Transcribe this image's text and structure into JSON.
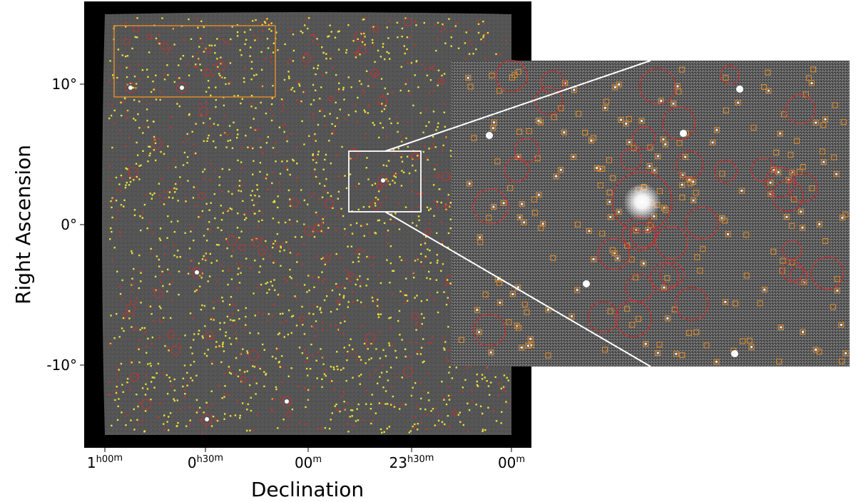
{
  "axes": {
    "xlabel": "Declination",
    "ylabel": "Right Ascension",
    "x_ticks": [
      {
        "label": "1",
        "sup": "h00",
        "sup2": "m"
      },
      {
        "label": "0",
        "sup": "h30",
        "sup2": "m"
      },
      {
        "label": "00",
        "sup": "m",
        "sup2": ""
      },
      {
        "label": "23",
        "sup": "h30",
        "sup2": "m"
      },
      {
        "label": "00",
        "sup": "m",
        "sup2": ""
      }
    ],
    "y_ticks": [
      "10°",
      "0°",
      "-10°"
    ]
  },
  "colors": {
    "page_background": "#ffffff",
    "image_background": "#000000",
    "sky_gray": "#545454",
    "inset_gray": "#5e5e5e",
    "yellow_sources": "#e8e038",
    "red_sources": "#c43232",
    "orange_box": "#e08a28",
    "zoom_box": "#ffffff"
  }
}
